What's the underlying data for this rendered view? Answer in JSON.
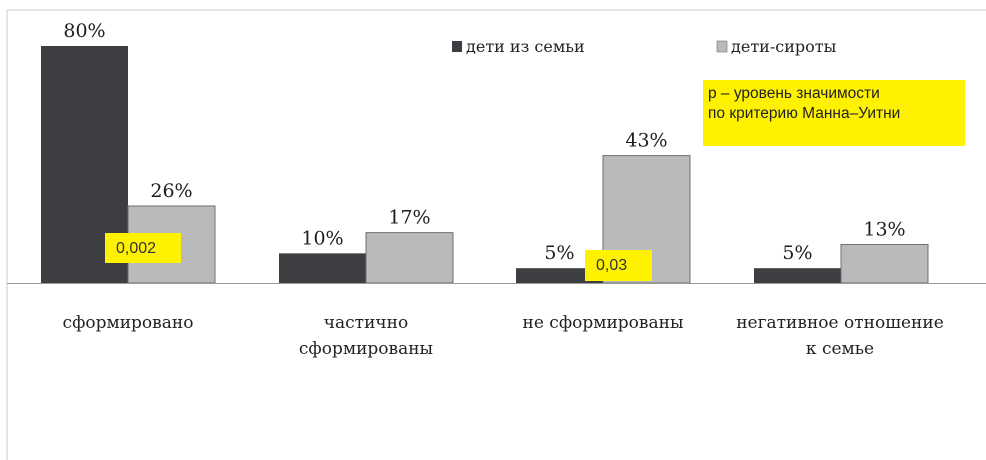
{
  "chart_data": {
    "type": "bar",
    "categories": [
      "сформировано",
      "частично сформированы",
      "не сформированы",
      "негативное отношение к семье"
    ],
    "category_lines": [
      [
        "сформировано"
      ],
      [
        "частично",
        "сформированы"
      ],
      [
        "не сформированы"
      ],
      [
        "негативное отношение",
        "к семье"
      ]
    ],
    "series": [
      {
        "name": "дети из семьи",
        "values": [
          80,
          10,
          5,
          5
        ],
        "labels": [
          "80%",
          "10%",
          "5%",
          "5%"
        ],
        "color": "#3d3e42"
      },
      {
        "name": "дети-сироты",
        "values": [
          26,
          17,
          43,
          13
        ],
        "labels": [
          "26%",
          "17%",
          "43%",
          "13%"
        ],
        "color": "#b9babc"
      }
    ],
    "ylim": [
      0,
      80
    ],
    "legend_position": "top",
    "grid": false,
    "annotation": {
      "lines": [
        "р – уровень значимости",
        "по критерию Манна–Уитни"
      ],
      "color": "#fff200"
    },
    "p_values": [
      {
        "category_index": 0,
        "label": "0,002"
      },
      {
        "category_index": 2,
        "label": "0,03"
      }
    ]
  }
}
